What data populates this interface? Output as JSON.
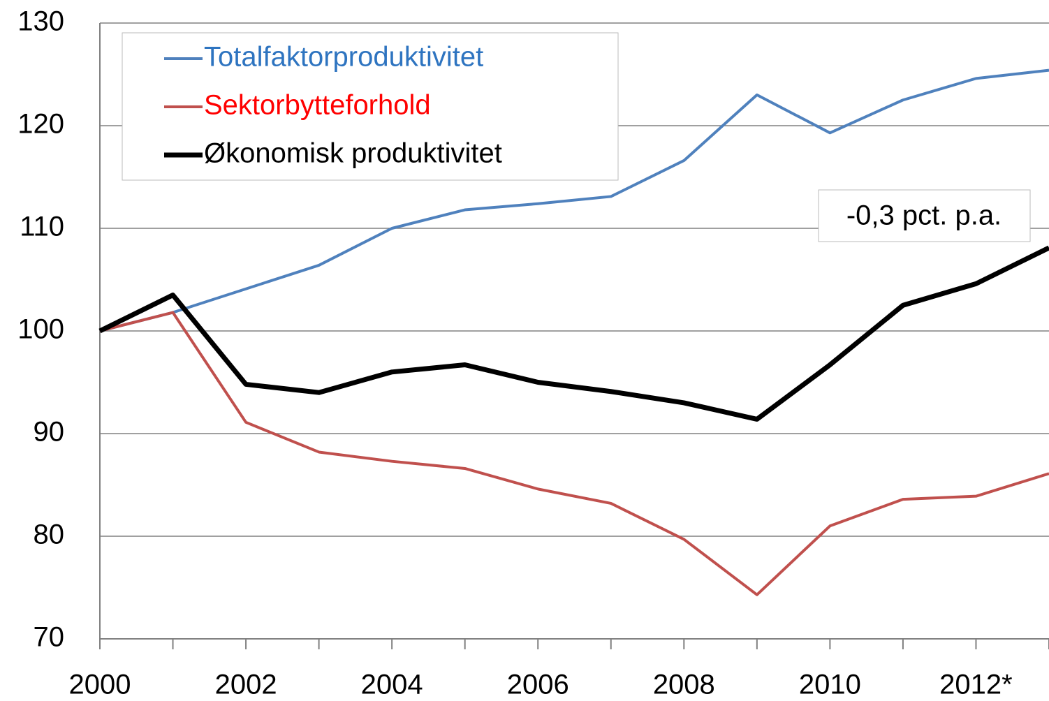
{
  "chart_data": {
    "type": "line",
    "categories": [
      "2000",
      null,
      "2002",
      null,
      "2004",
      null,
      "2006",
      null,
      "2008",
      null,
      "2010",
      null,
      "2012*",
      null
    ],
    "series": [
      {
        "name": "Totalfaktorproduktivitet",
        "color": "#4f81bd",
        "text_color": "#2e74c0",
        "line_width": 4,
        "values": [
          100,
          101.8,
          104.1,
          106.4,
          110,
          111.8,
          112.4,
          113.1,
          116.6,
          123,
          119.3,
          122.5,
          124.6,
          125.4
        ]
      },
      {
        "name": "Sektorbytteforhold",
        "color": "#c0504d",
        "text_color": "#ff0000",
        "line_width": 4,
        "values": [
          100,
          101.8,
          91.1,
          88.2,
          87.3,
          86.6,
          84.6,
          83.2,
          79.7,
          74.3,
          81,
          83.6,
          83.9,
          86.1
        ]
      },
      {
        "name": "Økonomisk produktivitet",
        "color": "#000000",
        "text_color": "#000000",
        "line_width": 7,
        "values": [
          100,
          103.5,
          94.8,
          94,
          96,
          96.7,
          95,
          94.1,
          93,
          91.4,
          96.7,
          102.5,
          104.6,
          108.1
        ]
      }
    ],
    "annotation": "-0,3 pct. p.a.",
    "ylim": [
      70,
      130
    ],
    "yticks": [
      70,
      80,
      90,
      100,
      110,
      120,
      130
    ],
    "grid": true
  }
}
